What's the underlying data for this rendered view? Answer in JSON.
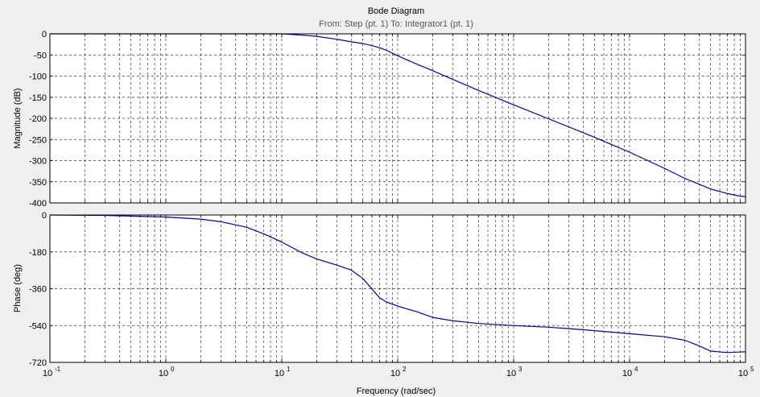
{
  "chart_data": {
    "type": "line",
    "title": "Bode Diagram",
    "subtitle": "From: Step (pt. 1)  To: Integrator1 (pt. 1)",
    "xlabel": "Frequency  (rad/sec)",
    "x_scale": "log",
    "xlim": [
      0.1,
      100000
    ],
    "x_ticks": [
      {
        "base": "10",
        "exp": "-1"
      },
      {
        "base": "10",
        "exp": "0"
      },
      {
        "base": "10",
        "exp": "1"
      },
      {
        "base": "10",
        "exp": "2"
      },
      {
        "base": "10",
        "exp": "3"
      },
      {
        "base": "10",
        "exp": "4"
      },
      {
        "base": "10",
        "exp": "5"
      }
    ],
    "grid": true,
    "background_color": "#f0f0f0",
    "axes_color": "#ffffff",
    "line_color": "#0000a0",
    "grid_color": "#333333",
    "panels": [
      {
        "id": "magnitude",
        "ylabel": "Magnitude (dB)",
        "ylim": [
          -400,
          0
        ],
        "yticks": [
          0,
          -50,
          -100,
          -150,
          -200,
          -250,
          -300,
          -350,
          -400
        ],
        "ytick_labels": [
          "0",
          "-50",
          "-100",
          "-150",
          "-200",
          "-250",
          "-300",
          "-350",
          "-400"
        ],
        "series": [
          {
            "x": [
              0.1,
              1,
              5,
              10,
              15,
              20,
              30,
              40,
              50,
              60,
              70,
              80,
              100,
              150,
              200,
              300,
              500,
              1000,
              2000,
              5000,
              10000,
              20000,
              30000,
              50000,
              70000,
              90000,
              100000
            ],
            "y": [
              0,
              0,
              0,
              0,
              -3,
              -6,
              -13,
              -19,
              -23,
              -28,
              -33,
              -39,
              -52,
              -73,
              -87,
              -108,
              -134,
              -168,
              -201,
              -245,
              -280,
              -318,
              -342,
              -367,
              -378,
              -384,
              -385
            ]
          }
        ]
      },
      {
        "id": "phase",
        "ylabel": "Phase (deg)",
        "ylim": [
          -720,
          0
        ],
        "yticks": [
          0,
          -180,
          -360,
          -540,
          -720
        ],
        "ytick_labels": [
          "0",
          "-180",
          "-360",
          "-540",
          "-720"
        ],
        "series": [
          {
            "x": [
              0.1,
              0.3,
              1,
              2,
              3,
              5,
              7,
              10,
              15,
              20,
              30,
              40,
              50,
              60,
              70,
              80,
              100,
              150,
              200,
              300,
              500,
              1000,
              2000,
              3000,
              5000,
              10000,
              20000,
              30000,
              40000,
              50000,
              70000,
              100000
            ],
            "y": [
              0,
              -2,
              -10,
              -20,
              -33,
              -60,
              -92,
              -132,
              -185,
              -215,
              -245,
              -270,
              -310,
              -362,
              -405,
              -425,
              -445,
              -475,
              -500,
              -517,
              -530,
              -540,
              -548,
              -555,
              -565,
              -580,
              -595,
              -612,
              -640,
              -665,
              -672,
              -668
            ]
          }
        ]
      }
    ]
  }
}
